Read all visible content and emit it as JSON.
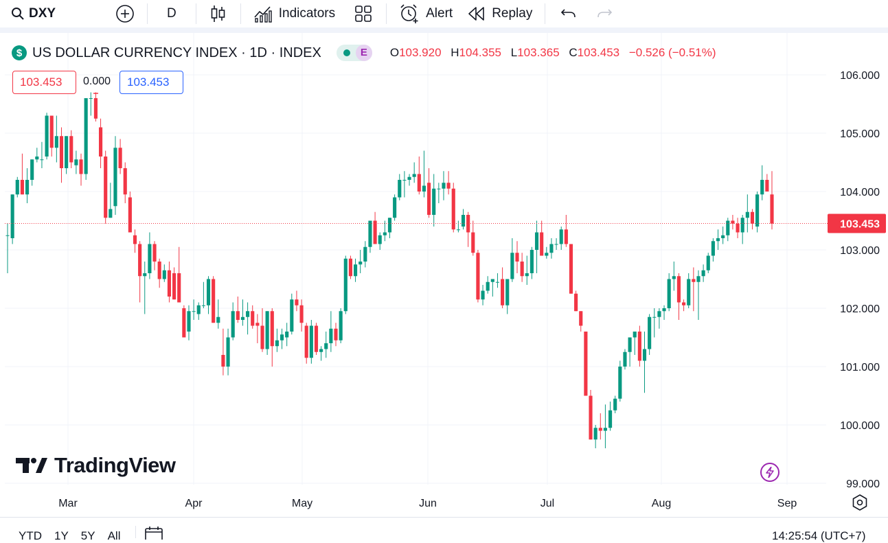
{
  "toolbar": {
    "symbol": "DXY",
    "interval": "D",
    "indicators_label": "Indicators",
    "alert_label": "Alert",
    "replay_label": "Replay"
  },
  "legend": {
    "title": "US DOLLAR CURRENCY INDEX · 1D · INDEX",
    "badge": "E",
    "o_key": "O",
    "o": "103.920",
    "h_key": "H",
    "h": "104.355",
    "l_key": "L",
    "l": "103.365",
    "c_key": "C",
    "c": "103.453",
    "change": "−0.526 (−0.51%)"
  },
  "price_boxes": {
    "bid": "103.453",
    "spread": "0.000",
    "ask": "103.453"
  },
  "watermark": "TradingView",
  "bottom": {
    "ranges": [
      "YTD",
      "1Y",
      "5Y",
      "All"
    ],
    "clock": "14:25:54 (UTC+7)"
  },
  "colors": {
    "up": "#089981",
    "down": "#f23645",
    "accent": "#2962ff",
    "badge_purple": "#9c27b0"
  },
  "chart_data": {
    "type": "candlestick",
    "y_ticks": [
      "106.000",
      "105.000",
      "104.000",
      "103.000",
      "102.000",
      "101.000",
      "100.000",
      "99.000"
    ],
    "y_range": [
      98.95,
      106.25
    ],
    "x_ticks": [
      "Mar",
      "Apr",
      "May",
      "Jun",
      "Jul",
      "Aug",
      "Sep"
    ],
    "last_price": "103.453",
    "grid": true,
    "candles": [
      {
        "o": 103.25,
        "h": 103.45,
        "l": 102.6,
        "c": 103.25
      },
      {
        "o": 103.2,
        "h": 103.95,
        "l": 103.1,
        "c": 103.95
      },
      {
        "o": 103.95,
        "h": 104.25,
        "l": 103.9,
        "c": 104.2
      },
      {
        "o": 104.2,
        "h": 104.65,
        "l": 103.95,
        "c": 103.95
      },
      {
        "o": 103.95,
        "h": 104.4,
        "l": 103.8,
        "c": 104.2
      },
      {
        "o": 104.2,
        "h": 104.55,
        "l": 104.1,
        "c": 104.55
      },
      {
        "o": 104.55,
        "h": 104.75,
        "l": 104.5,
        "c": 104.6
      },
      {
        "o": 104.55,
        "h": 104.85,
        "l": 104.4,
        "c": 104.55
      },
      {
        "o": 104.6,
        "h": 105.35,
        "l": 104.55,
        "c": 105.3
      },
      {
        "o": 105.3,
        "h": 105.3,
        "l": 104.6,
        "c": 104.75
      },
      {
        "o": 104.75,
        "h": 105.3,
        "l": 104.5,
        "c": 104.95
      },
      {
        "o": 104.95,
        "h": 105.1,
        "l": 104.15,
        "c": 104.4
      },
      {
        "o": 104.4,
        "h": 104.95,
        "l": 104.3,
        "c": 104.95
      },
      {
        "o": 104.95,
        "h": 105.05,
        "l": 104.4,
        "c": 104.5
      },
      {
        "o": 104.45,
        "h": 104.7,
        "l": 104.3,
        "c": 104.55
      },
      {
        "o": 104.55,
        "h": 104.65,
        "l": 104.1,
        "c": 104.3
      },
      {
        "o": 104.3,
        "h": 105.6,
        "l": 104.2,
        "c": 105.6
      },
      {
        "o": 105.6,
        "h": 105.7,
        "l": 105.3,
        "c": 105.6
      },
      {
        "o": 105.6,
        "h": 105.7,
        "l": 105.2,
        "c": 105.25
      },
      {
        "o": 105.1,
        "h": 105.25,
        "l": 104.4,
        "c": 104.6
      },
      {
        "o": 104.6,
        "h": 104.7,
        "l": 103.45,
        "c": 103.55
      },
      {
        "o": 103.55,
        "h": 104.15,
        "l": 103.55,
        "c": 103.7
      },
      {
        "o": 103.75,
        "h": 104.95,
        "l": 103.6,
        "c": 104.75
      },
      {
        "o": 104.75,
        "h": 104.9,
        "l": 104.3,
        "c": 104.4
      },
      {
        "o": 104.4,
        "h": 104.5,
        "l": 103.8,
        "c": 103.95
      },
      {
        "o": 103.9,
        "h": 104.0,
        "l": 103.3,
        "c": 103.3
      },
      {
        "o": 103.25,
        "h": 103.35,
        "l": 102.95,
        "c": 103.1
      },
      {
        "o": 103.1,
        "h": 103.15,
        "l": 102.1,
        "c": 102.55
      },
      {
        "o": 102.55,
        "h": 102.8,
        "l": 101.9,
        "c": 102.6
      },
      {
        "o": 102.6,
        "h": 103.3,
        "l": 102.5,
        "c": 103.1
      },
      {
        "o": 103.1,
        "h": 103.15,
        "l": 102.65,
        "c": 102.8
      },
      {
        "o": 102.8,
        "h": 102.85,
        "l": 102.35,
        "c": 102.5
      },
      {
        "o": 102.5,
        "h": 102.75,
        "l": 102.45,
        "c": 102.65
      },
      {
        "o": 102.65,
        "h": 102.8,
        "l": 102.1,
        "c": 102.2
      },
      {
        "o": 102.6,
        "h": 102.7,
        "l": 102.15,
        "c": 102.15
      },
      {
        "o": 102.6,
        "h": 103.05,
        "l": 102.1,
        "c": 102.1
      },
      {
        "o": 102.0,
        "h": 102.05,
        "l": 101.5,
        "c": 101.5
      },
      {
        "o": 101.6,
        "h": 102.05,
        "l": 101.45,
        "c": 101.95
      },
      {
        "o": 101.95,
        "h": 102.15,
        "l": 101.8,
        "c": 101.95
      },
      {
        "o": 101.9,
        "h": 102.1,
        "l": 101.8,
        "c": 102.05
      },
      {
        "o": 102.05,
        "h": 102.45,
        "l": 102.0,
        "c": 102.05
      },
      {
        "o": 102.05,
        "h": 102.55,
        "l": 101.9,
        "c": 102.5
      },
      {
        "o": 102.5,
        "h": 102.55,
        "l": 101.75,
        "c": 101.75
      },
      {
        "o": 101.75,
        "h": 102.15,
        "l": 101.65,
        "c": 101.85
      },
      {
        "o": 101.2,
        "h": 101.65,
        "l": 100.85,
        "c": 101.0
      },
      {
        "o": 101.0,
        "h": 101.65,
        "l": 100.85,
        "c": 101.5
      },
      {
        "o": 101.5,
        "h": 102.1,
        "l": 101.45,
        "c": 101.95
      },
      {
        "o": 101.95,
        "h": 102.2,
        "l": 101.75,
        "c": 101.8
      },
      {
        "o": 101.8,
        "h": 102.15,
        "l": 101.7,
        "c": 101.85
      },
      {
        "o": 101.85,
        "h": 102.1,
        "l": 101.55,
        "c": 101.95
      },
      {
        "o": 101.95,
        "h": 102.05,
        "l": 101.65,
        "c": 101.7
      },
      {
        "o": 101.75,
        "h": 101.9,
        "l": 101.4,
        "c": 101.7
      },
      {
        "o": 101.7,
        "h": 102.0,
        "l": 101.25,
        "c": 101.3
      },
      {
        "o": 101.3,
        "h": 101.95,
        "l": 101.2,
        "c": 101.95
      },
      {
        "o": 101.95,
        "h": 102.0,
        "l": 101.0,
        "c": 101.35
      },
      {
        "o": 101.35,
        "h": 101.65,
        "l": 101.25,
        "c": 101.45
      },
      {
        "o": 101.45,
        "h": 101.65,
        "l": 101.3,
        "c": 101.55
      },
      {
        "o": 101.5,
        "h": 101.75,
        "l": 101.35,
        "c": 101.6
      },
      {
        "o": 101.6,
        "h": 102.25,
        "l": 101.55,
        "c": 102.15
      },
      {
        "o": 102.15,
        "h": 102.3,
        "l": 101.95,
        "c": 102.05
      },
      {
        "o": 102.05,
        "h": 102.15,
        "l": 101.6,
        "c": 101.75
      },
      {
        "o": 101.7,
        "h": 101.75,
        "l": 101.05,
        "c": 101.15
      },
      {
        "o": 101.15,
        "h": 101.8,
        "l": 101.05,
        "c": 101.7
      },
      {
        "o": 101.7,
        "h": 101.75,
        "l": 101.2,
        "c": 101.25
      },
      {
        "o": 101.25,
        "h": 101.35,
        "l": 101.1,
        "c": 101.3
      },
      {
        "o": 101.3,
        "h": 101.6,
        "l": 101.15,
        "c": 101.4
      },
      {
        "o": 101.4,
        "h": 101.95,
        "l": 101.25,
        "c": 101.65
      },
      {
        "o": 101.65,
        "h": 101.75,
        "l": 101.35,
        "c": 101.45
      },
      {
        "o": 101.45,
        "h": 102.0,
        "l": 101.4,
        "c": 101.95
      },
      {
        "o": 101.95,
        "h": 102.9,
        "l": 101.9,
        "c": 102.85
      },
      {
        "o": 102.85,
        "h": 102.9,
        "l": 102.5,
        "c": 102.55
      },
      {
        "o": 102.55,
        "h": 102.85,
        "l": 102.45,
        "c": 102.75
      },
      {
        "o": 102.75,
        "h": 103.0,
        "l": 102.6,
        "c": 102.8
      },
      {
        "o": 102.8,
        "h": 103.15,
        "l": 102.7,
        "c": 103.05
      },
      {
        "o": 103.05,
        "h": 103.5,
        "l": 102.95,
        "c": 103.5
      },
      {
        "o": 103.5,
        "h": 103.65,
        "l": 103.1,
        "c": 103.1
      },
      {
        "o": 103.1,
        "h": 103.3,
        "l": 103.0,
        "c": 103.25
      },
      {
        "o": 103.25,
        "h": 103.5,
        "l": 103.15,
        "c": 103.3
      },
      {
        "o": 103.3,
        "h": 103.55,
        "l": 103.2,
        "c": 103.55
      },
      {
        "o": 103.55,
        "h": 103.95,
        "l": 103.5,
        "c": 103.9
      },
      {
        "o": 103.9,
        "h": 104.3,
        "l": 103.85,
        "c": 104.2
      },
      {
        "o": 104.2,
        "h": 104.35,
        "l": 103.9,
        "c": 104.2
      },
      {
        "o": 104.2,
        "h": 104.3,
        "l": 104.1,
        "c": 104.25
      },
      {
        "o": 104.25,
        "h": 104.5,
        "l": 104.15,
        "c": 104.3
      },
      {
        "o": 104.3,
        "h": 104.6,
        "l": 103.95,
        "c": 104.0
      },
      {
        "o": 104.0,
        "h": 104.7,
        "l": 103.9,
        "c": 104.1
      },
      {
        "o": 104.15,
        "h": 104.4,
        "l": 103.55,
        "c": 103.6
      },
      {
        "o": 103.6,
        "h": 104.3,
        "l": 103.4,
        "c": 104.05
      },
      {
        "o": 104.05,
        "h": 104.15,
        "l": 103.8,
        "c": 104.05
      },
      {
        "o": 104.05,
        "h": 104.35,
        "l": 103.85,
        "c": 104.15
      },
      {
        "o": 104.15,
        "h": 104.35,
        "l": 103.95,
        "c": 104.05
      },
      {
        "o": 104.05,
        "h": 104.15,
        "l": 103.3,
        "c": 103.35
      },
      {
        "o": 103.35,
        "h": 103.5,
        "l": 103.3,
        "c": 103.35
      },
      {
        "o": 103.4,
        "h": 103.7,
        "l": 103.35,
        "c": 103.6
      },
      {
        "o": 103.6,
        "h": 103.65,
        "l": 103.05,
        "c": 103.3
      },
      {
        "o": 103.3,
        "h": 103.5,
        "l": 102.9,
        "c": 102.95
      },
      {
        "o": 102.95,
        "h": 103.0,
        "l": 102.1,
        "c": 102.15
      },
      {
        "o": 102.15,
        "h": 102.4,
        "l": 102.05,
        "c": 102.3
      },
      {
        "o": 102.3,
        "h": 102.55,
        "l": 102.25,
        "c": 102.45
      },
      {
        "o": 102.45,
        "h": 102.5,
        "l": 102.2,
        "c": 102.5
      },
      {
        "o": 102.45,
        "h": 102.6,
        "l": 102.35,
        "c": 102.45
      },
      {
        "o": 102.5,
        "h": 102.7,
        "l": 102.0,
        "c": 102.05
      },
      {
        "o": 102.05,
        "h": 102.5,
        "l": 101.9,
        "c": 102.5
      },
      {
        "o": 102.5,
        "h": 103.2,
        "l": 102.45,
        "c": 102.95
      },
      {
        "o": 102.95,
        "h": 103.15,
        "l": 102.6,
        "c": 102.8
      },
      {
        "o": 102.8,
        "h": 102.95,
        "l": 102.45,
        "c": 102.55
      },
      {
        "o": 102.55,
        "h": 102.9,
        "l": 102.4,
        "c": 102.6
      },
      {
        "o": 102.6,
        "h": 103.05,
        "l": 102.5,
        "c": 103.0
      },
      {
        "o": 103.0,
        "h": 103.5,
        "l": 102.6,
        "c": 103.3
      },
      {
        "o": 103.3,
        "h": 103.5,
        "l": 102.9,
        "c": 102.9
      },
      {
        "o": 102.9,
        "h": 103.05,
        "l": 102.85,
        "c": 102.95
      },
      {
        "o": 102.95,
        "h": 103.2,
        "l": 102.85,
        "c": 103.1
      },
      {
        "o": 103.1,
        "h": 103.2,
        "l": 103.0,
        "c": 103.1
      },
      {
        "o": 103.1,
        "h": 103.4,
        "l": 103.0,
        "c": 103.35
      },
      {
        "o": 103.35,
        "h": 103.6,
        "l": 103.05,
        "c": 103.1
      },
      {
        "o": 103.1,
        "h": 103.1,
        "l": 102.25,
        "c": 102.25
      },
      {
        "o": 102.25,
        "h": 102.3,
        "l": 101.95,
        "c": 101.95
      },
      {
        "o": 101.95,
        "h": 101.95,
        "l": 101.6,
        "c": 101.7
      },
      {
        "o": 101.6,
        "h": 101.6,
        "l": 100.5,
        "c": 100.5
      },
      {
        "o": 100.5,
        "h": 100.6,
        "l": 99.75,
        "c": 99.75
      },
      {
        "o": 99.75,
        "h": 100.0,
        "l": 99.6,
        "c": 99.95
      },
      {
        "o": 99.95,
        "h": 100.2,
        "l": 99.75,
        "c": 99.9
      },
      {
        "o": 99.9,
        "h": 100.35,
        "l": 99.6,
        "c": 99.95
      },
      {
        "o": 99.95,
        "h": 100.4,
        "l": 99.9,
        "c": 100.25
      },
      {
        "o": 100.25,
        "h": 100.5,
        "l": 100.2,
        "c": 100.45
      },
      {
        "o": 100.45,
        "h": 101.1,
        "l": 100.4,
        "c": 101.0
      },
      {
        "o": 101.0,
        "h": 101.3,
        "l": 100.95,
        "c": 101.25
      },
      {
        "o": 101.25,
        "h": 101.5,
        "l": 101.0,
        "c": 101.5
      },
      {
        "o": 101.5,
        "h": 101.6,
        "l": 101.2,
        "c": 101.6
      },
      {
        "o": 101.6,
        "h": 101.7,
        "l": 101.0,
        "c": 101.1
      },
      {
        "o": 101.1,
        "h": 101.6,
        "l": 100.55,
        "c": 101.3
      },
      {
        "o": 101.3,
        "h": 101.9,
        "l": 101.2,
        "c": 101.85
      },
      {
        "o": 101.85,
        "h": 102.0,
        "l": 101.5,
        "c": 101.85
      },
      {
        "o": 101.85,
        "h": 102.0,
        "l": 101.65,
        "c": 101.95
      },
      {
        "o": 101.95,
        "h": 102.05,
        "l": 101.8,
        "c": 102.0
      },
      {
        "o": 102.0,
        "h": 102.6,
        "l": 101.95,
        "c": 102.5
      },
      {
        "o": 102.5,
        "h": 102.8,
        "l": 102.3,
        "c": 102.55
      },
      {
        "o": 102.55,
        "h": 102.6,
        "l": 101.8,
        "c": 102.1
      },
      {
        "o": 102.1,
        "h": 102.15,
        "l": 101.95,
        "c": 102.05
      },
      {
        "o": 102.05,
        "h": 102.6,
        "l": 102.0,
        "c": 102.5
      },
      {
        "o": 102.5,
        "h": 102.7,
        "l": 101.95,
        "c": 102.45
      },
      {
        "o": 102.45,
        "h": 102.65,
        "l": 101.8,
        "c": 102.55
      },
      {
        "o": 102.55,
        "h": 102.75,
        "l": 102.45,
        "c": 102.65
      },
      {
        "o": 102.65,
        "h": 102.95,
        "l": 102.6,
        "c": 102.9
      },
      {
        "o": 102.9,
        "h": 103.2,
        "l": 102.8,
        "c": 103.15
      },
      {
        "o": 103.15,
        "h": 103.35,
        "l": 103.0,
        "c": 103.2
      },
      {
        "o": 103.2,
        "h": 103.4,
        "l": 103.1,
        "c": 103.25
      },
      {
        "o": 103.25,
        "h": 103.55,
        "l": 103.15,
        "c": 103.5
      },
      {
        "o": 103.5,
        "h": 103.6,
        "l": 103.35,
        "c": 103.45
      },
      {
        "o": 103.45,
        "h": 103.55,
        "l": 103.2,
        "c": 103.3
      },
      {
        "o": 103.3,
        "h": 103.6,
        "l": 103.1,
        "c": 103.55
      },
      {
        "o": 103.55,
        "h": 103.95,
        "l": 103.3,
        "c": 103.65
      },
      {
        "o": 103.65,
        "h": 103.7,
        "l": 103.35,
        "c": 103.45
      },
      {
        "o": 103.4,
        "h": 104.0,
        "l": 103.3,
        "c": 103.95
      },
      {
        "o": 103.95,
        "h": 104.45,
        "l": 103.85,
        "c": 104.2
      },
      {
        "o": 104.2,
        "h": 104.3,
        "l": 104.0,
        "c": 104.0
      },
      {
        "o": 103.95,
        "h": 104.35,
        "l": 103.35,
        "c": 103.45
      }
    ]
  }
}
